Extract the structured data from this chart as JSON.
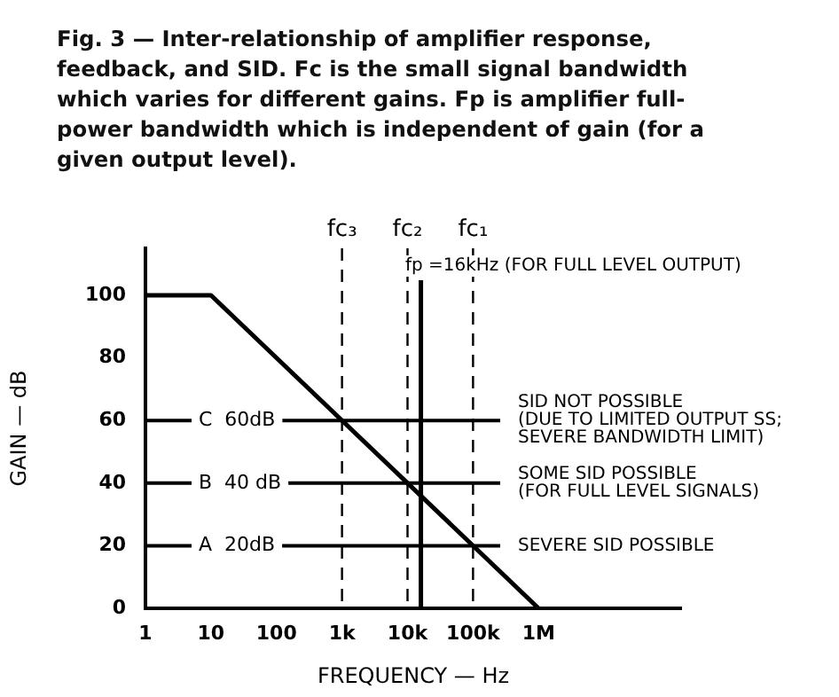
{
  "chart_data": {
    "type": "line",
    "title": "Fig. 3 — Inter-relationship of amplifier response, feedback, and SID. Fc is the small signal bandwidth which varies for different gains. Fp is amplifier full-power bandwidth which is independent of gain (for a given output level).",
    "xlabel": "FREQUENCY — Hz",
    "ylabel": "GAIN — dB",
    "log": "x",
    "xlim": [
      1,
      150000000
    ],
    "ylim": [
      0,
      115
    ],
    "xticks": [
      1,
      10,
      100,
      {
        "value": 1000,
        "label": "1k"
      },
      {
        "value": 10000,
        "label": "10k"
      },
      {
        "value": 100000,
        "label": "100k"
      },
      {
        "value": 1000000,
        "label": "1M"
      }
    ],
    "yticks": [
      0,
      20,
      40,
      60,
      80,
      100
    ],
    "series": [
      {
        "color": "#000000",
        "x": [
          1,
          10,
          1000000
        ],
        "values": [
          100,
          100,
          0
        ]
      }
    ],
    "ref_lines": [
      {
        "axis": "y",
        "value": 60,
        "label": "C  60dB",
        "color": "#000000",
        "line_style": "solid"
      },
      {
        "axis": "y",
        "value": 40,
        "label": "B  40 dB",
        "color": "#000000",
        "line_style": "solid"
      },
      {
        "axis": "y",
        "value": 20,
        "label": "A  20dB",
        "color": "#000000",
        "line_style": "solid"
      },
      {
        "axis": "x",
        "value": 1000,
        "label": "fc₃",
        "color": "#000000",
        "line_style": "dashed"
      },
      {
        "axis": "x",
        "value": 10000,
        "label": "fc₂",
        "color": "#000000",
        "line_style": "dashed"
      },
      {
        "axis": "x",
        "value": 100000,
        "label": "fc₁",
        "color": "#000000",
        "line_style": "dashed"
      },
      {
        "axis": "x",
        "value": 16000,
        "color": "#000000",
        "line_style": "solid"
      }
    ],
    "annotations": [
      "fp =16kHz (FOR FULL LEVEL OUTPUT)",
      {
        "text": "SID NOT POSSIBLE\n(DUE TO LIMITED OUTPUT SS;\nSEVERE BANDWIDTH LIMIT)",
        "y": 60
      },
      {
        "text": "SOME SID POSSIBLE\n(FOR FULL LEVEL SIGNALS)",
        "y": 40
      },
      {
        "text": "SEVERE SID POSSIBLE",
        "y": 20
      }
    ],
    "grid": false,
    "legend": false,
    "marker": "none",
    "line_style": "solid"
  }
}
